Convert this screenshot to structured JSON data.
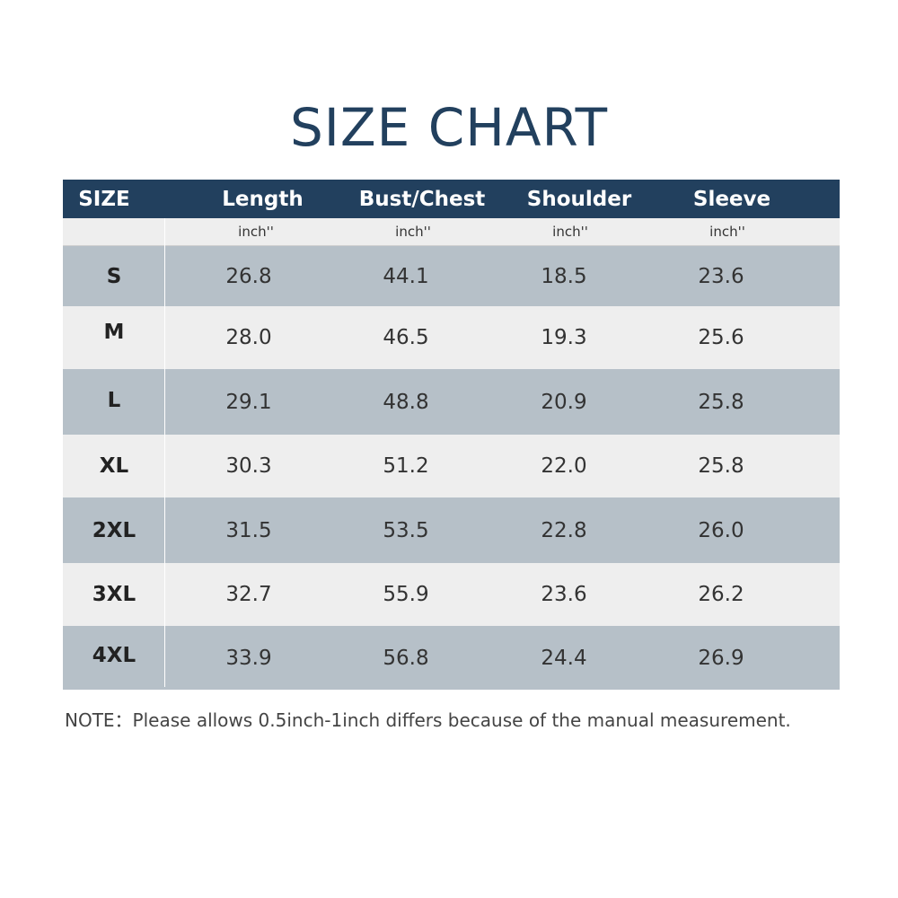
{
  "title": "SIZE CHART",
  "table": {
    "headers": [
      "SIZE",
      "Length",
      "Bust/Chest",
      "Shoulder",
      "Sleeve"
    ],
    "units": [
      "",
      "inch''",
      "inch''",
      "inch''",
      "inch''"
    ],
    "rows": [
      [
        "S",
        "26.8",
        "44.1",
        "18.5",
        "23.6"
      ],
      [
        "M",
        "28.0",
        "46.5",
        "19.3",
        "25.6"
      ],
      [
        "L",
        "29.1",
        "48.8",
        "20.9",
        "25.8"
      ],
      [
        "XL",
        "30.3",
        "51.2",
        "22.0",
        "25.8"
      ],
      [
        "2XL",
        "31.5",
        "53.5",
        "22.8",
        "26.0"
      ],
      [
        "3XL",
        "32.7",
        "55.9",
        "23.6",
        "26.2"
      ],
      [
        "4XL",
        "33.9",
        "56.8",
        "24.4",
        "26.9"
      ]
    ]
  },
  "note": "NOTE：Please allows 0.5inch-1inch differs because of the manual measurement.",
  "colors": {
    "header_bg": "#22405e",
    "row_dark": "#b6c0c8",
    "row_light": "#eeeeee",
    "title": "#22405e"
  }
}
